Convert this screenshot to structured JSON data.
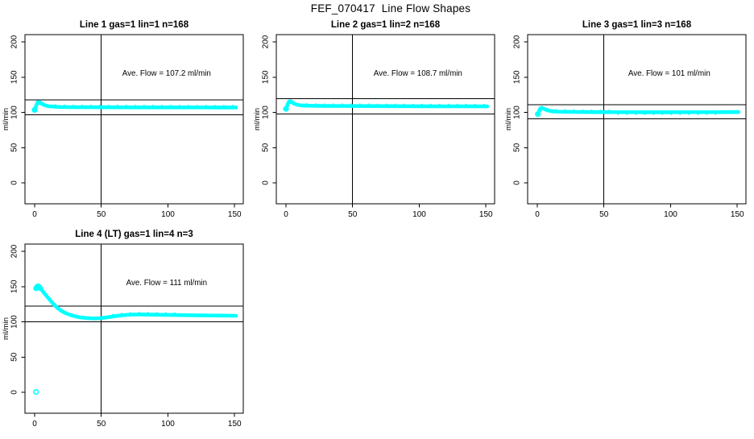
{
  "page": {
    "title": "FEF_070417  Line Flow Shapes",
    "background": "#ffffff"
  },
  "colors": {
    "series": "#00ffff",
    "axis": "#000000",
    "text": "#000000"
  },
  "chart_data": [
    {
      "type": "scatter",
      "title": "Line 1 gas=1 lin=1 n=168",
      "ylabel": "ml/min",
      "ave_flow": 107.2,
      "annotation": {
        "text": "Ave. Flow =  107.2  ml/min",
        "x": 99,
        "y": 152
      },
      "xticks": [
        0,
        50,
        100,
        150
      ],
      "yticks": [
        0,
        50,
        100,
        150,
        200
      ],
      "xlim": [
        -7.25,
        156.5
      ],
      "ylim": [
        -29.7,
        210.3
      ],
      "vline_x": 50,
      "hlines": [
        117.9,
        96.5
      ],
      "series": {
        "points": [
          [
            0,
            103.5
          ],
          [
            1.5,
            111
          ],
          [
            2.5,
            114
          ],
          [
            3.5,
            114.3
          ],
          [
            4.5,
            113.3
          ],
          [
            6,
            111.5
          ],
          [
            8,
            109.8
          ],
          [
            11,
            108.6
          ],
          [
            15,
            108
          ],
          [
            20,
            107.6
          ],
          [
            30,
            107.4
          ],
          [
            45,
            107.3
          ],
          [
            60,
            107.2
          ],
          [
            80,
            107.1
          ],
          [
            100,
            107.1
          ],
          [
            120,
            107
          ],
          [
            135,
            107
          ],
          [
            151,
            106.9
          ]
        ],
        "blob_markers": [
          [
            2.5,
            114
          ],
          [
            3.5,
            114.2
          ]
        ],
        "blob_r": 2.9,
        "open_markers": [
          [
            0,
            103.5
          ]
        ],
        "fuzz": [
          {
            "dy": 2.7,
            "from": 12,
            "to": 151
          }
        ]
      }
    },
    {
      "type": "scatter",
      "title": "Line 2 gas=1 lin=2 n=168",
      "ylabel": "ml/min",
      "ave_flow": 108.7,
      "annotation": {
        "text": "Ave. Flow =  108.7  ml/min",
        "x": 99,
        "y": 152
      },
      "xticks": [
        0,
        50,
        100,
        150
      ],
      "yticks": [
        0,
        50,
        100,
        150,
        200
      ],
      "xlim": [
        -7.25,
        156.5
      ],
      "ylim": [
        -29.7,
        210.3
      ],
      "vline_x": 50,
      "hlines": [
        119.6,
        97.8
      ],
      "series": {
        "points": [
          [
            0,
            105
          ],
          [
            1.5,
            112.5
          ],
          [
            2.5,
            115
          ],
          [
            3.5,
            115.3
          ],
          [
            4.5,
            114.3
          ],
          [
            6,
            112.5
          ],
          [
            8,
            111
          ],
          [
            11,
            110
          ],
          [
            15,
            109.5
          ],
          [
            20,
            109.3
          ],
          [
            30,
            109.1
          ],
          [
            45,
            109
          ],
          [
            60,
            108.9
          ],
          [
            80,
            108.8
          ],
          [
            100,
            108.7
          ],
          [
            120,
            108.6
          ],
          [
            135,
            108.6
          ],
          [
            151,
            108.5
          ]
        ],
        "blob_markers": [
          [
            2.5,
            115
          ],
          [
            3.5,
            115.2
          ]
        ],
        "blob_r": 2.9,
        "open_markers": [
          [
            0,
            105
          ]
        ],
        "fuzz": [
          {
            "dy": 2.7,
            "from": 12,
            "to": 151
          }
        ]
      }
    },
    {
      "type": "scatter",
      "title": "Line 3 gas=1 lin=3 n=168",
      "ylabel": "ml/min",
      "ave_flow": 101,
      "annotation": {
        "text": "Ave. Flow =  101  ml/min",
        "x": 99,
        "y": 152
      },
      "xticks": [
        0,
        50,
        100,
        150
      ],
      "yticks": [
        0,
        50,
        100,
        150,
        200
      ],
      "xlim": [
        -7.25,
        156.5
      ],
      "ylim": [
        -29.7,
        210.3
      ],
      "vline_x": 50,
      "hlines": [
        111.1,
        90.9
      ],
      "series": {
        "points": [
          [
            0.5,
            98
          ],
          [
            1.5,
            103
          ],
          [
            2.5,
            105.5
          ],
          [
            3.5,
            106
          ],
          [
            5,
            105
          ],
          [
            7,
            103.3
          ],
          [
            9,
            102.2
          ],
          [
            12,
            101.4
          ],
          [
            16,
            101
          ],
          [
            22,
            100.8
          ],
          [
            30,
            100.6
          ],
          [
            45,
            100.4
          ],
          [
            60,
            100.3
          ],
          [
            80,
            100.2
          ],
          [
            100,
            100.2
          ],
          [
            120,
            100.3
          ],
          [
            135,
            100.4
          ],
          [
            151,
            100.5
          ]
        ],
        "blob_markers": [
          [
            2.5,
            105.3
          ],
          [
            3.5,
            105.8
          ]
        ],
        "blob_r": 2.9,
        "open_markers": [
          [
            0.4,
            97.5
          ]
        ],
        "fuzz": [
          {
            "dy": 2.7,
            "from": 6,
            "to": 60
          },
          {
            "dy": -3,
            "from": 55,
            "to": 140
          }
        ]
      }
    },
    {
      "type": "scatter",
      "title": "Line 4 (LT) gas=1 lin=4 n=3",
      "ylabel": "ml/min",
      "ave_flow": 111,
      "annotation": {
        "text": "Ave. Flow =  111  ml/min",
        "x": 99,
        "y": 152
      },
      "xticks": [
        0,
        50,
        100,
        150
      ],
      "yticks": [
        0,
        50,
        100,
        150,
        200
      ],
      "xlim": [
        -7.25,
        156.5
      ],
      "ylim": [
        -29.7,
        210.3
      ],
      "vline_x": 50,
      "hlines": [
        122.1,
        99.9
      ],
      "series": {
        "points": [
          [
            1,
            147
          ],
          [
            2,
            150
          ],
          [
            3,
            150.5
          ],
          [
            4,
            148.5
          ],
          [
            5,
            146
          ],
          [
            7,
            141
          ],
          [
            9,
            136.5
          ],
          [
            11,
            132
          ],
          [
            13,
            127.5
          ],
          [
            15,
            123.5
          ],
          [
            17,
            120
          ],
          [
            19,
            117
          ],
          [
            21,
            114.5
          ],
          [
            23,
            112.5
          ],
          [
            25,
            111
          ],
          [
            28,
            109
          ],
          [
            31,
            107.5
          ],
          [
            34,
            106.3
          ],
          [
            38,
            105.5
          ],
          [
            42,
            104.9
          ],
          [
            46,
            104.8
          ],
          [
            50,
            105.3
          ],
          [
            54,
            106.3
          ],
          [
            58,
            107.3
          ],
          [
            62,
            108.5
          ],
          [
            66,
            109.3
          ],
          [
            70,
            109.9
          ],
          [
            75,
            110.3
          ],
          [
            80,
            110.4
          ],
          [
            90,
            110.1
          ],
          [
            100,
            109.8
          ],
          [
            110,
            109.5
          ],
          [
            120,
            109.2
          ],
          [
            130,
            109
          ],
          [
            140,
            108.8
          ],
          [
            151,
            108.6
          ]
        ],
        "blob_markers": [
          [
            1,
            147.5
          ],
          [
            1.8,
            149.8
          ],
          [
            2.6,
            150.5
          ],
          [
            3.4,
            149.5
          ],
          [
            4.2,
            147.5
          ]
        ],
        "blob_r": 3.4,
        "open_markers": [
          [
            1,
            0.5
          ]
        ],
        "fuzz": [
          {
            "dy": 2.8,
            "from": 55,
            "to": 115
          }
        ]
      }
    }
  ]
}
